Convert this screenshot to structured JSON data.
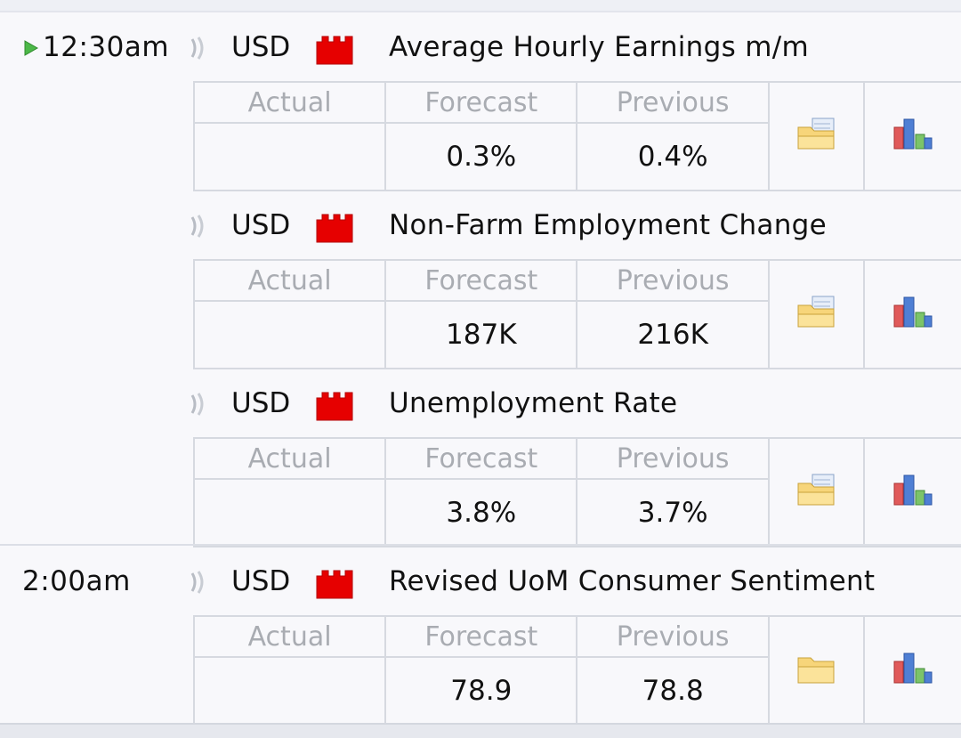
{
  "columns": {
    "actual": "Actual",
    "forecast": "Forecast",
    "previous": "Previous"
  },
  "events": [
    {
      "time": "12:30am",
      "current": true,
      "currency": "USD",
      "name": "Average Hourly Earnings m/m",
      "actual": "",
      "forecast": "0.3%",
      "previous": "0.4%"
    },
    {
      "time": "",
      "current": false,
      "currency": "USD",
      "name": "Non-Farm Employment Change",
      "actual": "",
      "forecast": "187K",
      "previous": "216K"
    },
    {
      "time": "",
      "current": false,
      "currency": "USD",
      "name": "Unemployment Rate",
      "actual": "",
      "forecast": "3.8%",
      "previous": "3.7%"
    },
    {
      "time": "2:00am",
      "current": false,
      "currency": "USD",
      "name": "Revised UoM Consumer Sentiment",
      "actual": "",
      "forecast": "78.9",
      "previous": "78.8"
    }
  ],
  "impact": {
    "level": "high",
    "color": "#e60000"
  },
  "icons": {
    "current": "play-icon",
    "speech": "sound-icon",
    "detail": "folder-icon",
    "history": "chart-icon"
  }
}
